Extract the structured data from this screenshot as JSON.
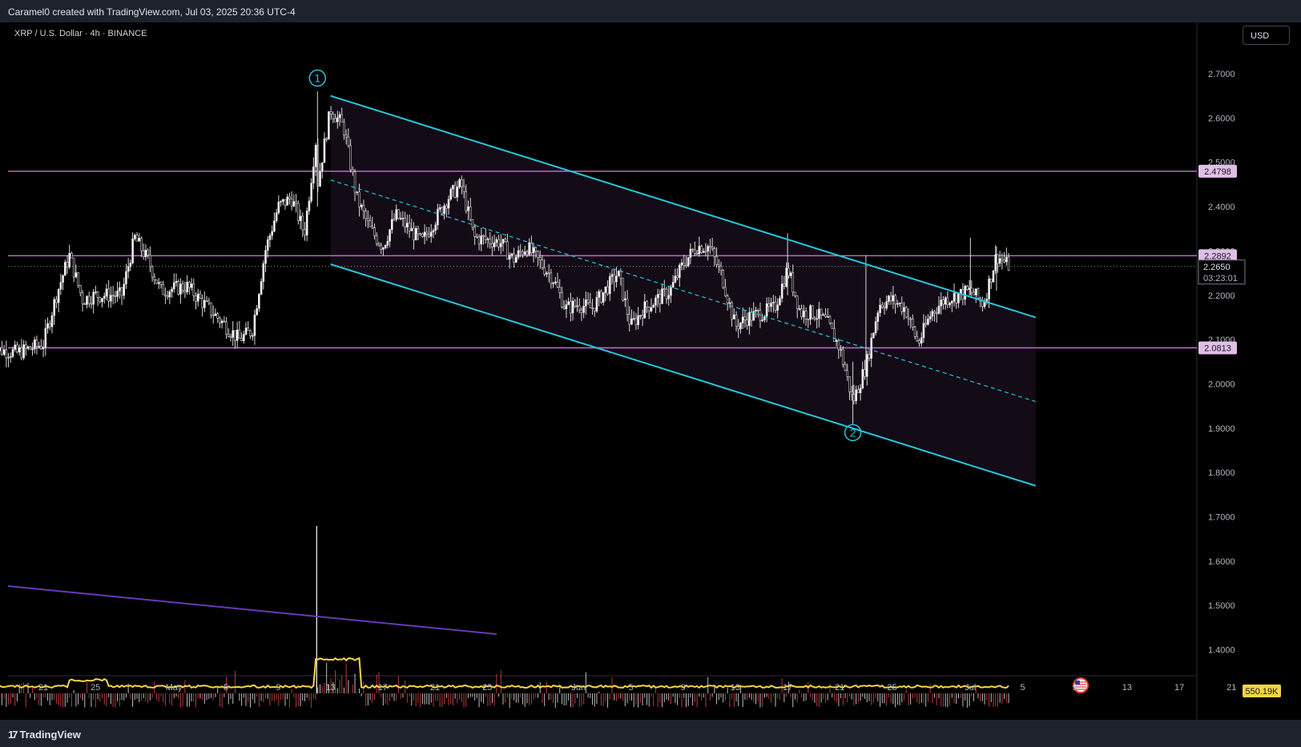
{
  "header": {
    "attribution": "Caramel0 created with TradingView.com, Jul 03, 2025 20:36 UTC-4"
  },
  "symbol_line": "XRP / U.S. Dollar · 4h · BINANCE",
  "currency_button": "USD",
  "footer": {
    "brand": "TradingView",
    "brand_icon": "tradingview-logo-icon"
  },
  "colors": {
    "channel": "#26c6da",
    "levels": "#ba68c8",
    "volume_ma": "#f5d547",
    "trend_line": "#673ab7",
    "price_label_bg": "#e1bee7"
  },
  "chart_data": {
    "type": "candlestick",
    "instrument": "XRP / U.S. Dollar",
    "timeframe": "4h",
    "exchange": "BINANCE",
    "y_axis": {
      "ticks": [
        2.7,
        2.6,
        2.5,
        2.4,
        2.3,
        2.2,
        2.1,
        2.0,
        1.9,
        1.8,
        1.7,
        1.6,
        1.5,
        1.4
      ],
      "tick_labels": [
        "2.7000",
        "2.6000",
        "2.5000",
        "2.4000",
        "2.3000",
        "2.2000",
        "2.1000",
        "2.0000",
        "1.9000",
        "1.8000",
        "1.7000",
        "1.6000",
        "1.5000",
        "1.4000"
      ],
      "range": [
        1.35,
        2.78
      ]
    },
    "x_axis": {
      "tick_labels": [
        {
          "label": "21",
          "date": "2025-04-21"
        },
        {
          "label": "25",
          "date": "2025-04-25"
        },
        {
          "label": "May",
          "date": "2025-05-01"
        },
        {
          "label": "5",
          "date": "2025-05-05"
        },
        {
          "label": "9",
          "date": "2025-05-09"
        },
        {
          "label": "13",
          "date": "2025-05-13"
        },
        {
          "label": "17",
          "date": "2025-05-17"
        },
        {
          "label": "21",
          "date": "2025-05-21"
        },
        {
          "label": "25",
          "date": "2025-05-25"
        },
        {
          "label": "Jun",
          "date": "2025-06-01"
        },
        {
          "label": "5",
          "date": "2025-06-05"
        },
        {
          "label": "9",
          "date": "2025-06-09"
        },
        {
          "label": "13",
          "date": "2025-06-13"
        },
        {
          "label": "17",
          "date": "2025-06-17"
        },
        {
          "label": "21",
          "date": "2025-06-21"
        },
        {
          "label": "25",
          "date": "2025-06-25"
        },
        {
          "label": "Jul",
          "date": "2025-07-01"
        },
        {
          "label": "5",
          "date": "2025-07-05"
        },
        {
          "label": "9",
          "date": "2025-07-09"
        },
        {
          "label": "13",
          "date": "2025-07-13"
        },
        {
          "label": "17",
          "date": "2025-07-17"
        },
        {
          "label": "21",
          "date": "2025-07-21"
        }
      ]
    },
    "price_path": [
      {
        "date": "2025-04-17",
        "price": 2.08
      },
      {
        "date": "2025-04-19",
        "price": 2.07
      },
      {
        "date": "2025-04-21",
        "price": 2.09
      },
      {
        "date": "2025-04-22",
        "price": 2.2
      },
      {
        "date": "2025-04-23",
        "price": 2.29
      },
      {
        "date": "2025-04-24",
        "price": 2.19
      },
      {
        "date": "2025-04-25",
        "price": 2.2
      },
      {
        "date": "2025-04-27",
        "price": 2.2
      },
      {
        "date": "2025-04-28",
        "price": 2.33
      },
      {
        "date": "2025-04-29",
        "price": 2.28
      },
      {
        "date": "2025-04-30",
        "price": 2.21
      },
      {
        "date": "2025-05-02",
        "price": 2.22
      },
      {
        "date": "2025-05-04",
        "price": 2.16
      },
      {
        "date": "2025-05-06",
        "price": 2.1
      },
      {
        "date": "2025-05-07",
        "price": 2.12
      },
      {
        "date": "2025-05-08",
        "price": 2.3
      },
      {
        "date": "2025-05-09",
        "price": 2.4
      },
      {
        "date": "2025-05-10",
        "price": 2.42
      },
      {
        "date": "2025-05-11",
        "price": 2.34
      },
      {
        "date": "2025-05-12",
        "price": 2.58
      },
      {
        "date": "2025-05-12",
        "price": 2.45
      },
      {
        "date": "2025-05-13",
        "price": 2.62
      },
      {
        "date": "2025-05-14",
        "price": 2.58
      },
      {
        "date": "2025-05-15",
        "price": 2.42
      },
      {
        "date": "2025-05-16",
        "price": 2.35
      },
      {
        "date": "2025-05-17",
        "price": 2.31
      },
      {
        "date": "2025-05-18",
        "price": 2.38
      },
      {
        "date": "2025-05-20",
        "price": 2.32
      },
      {
        "date": "2025-05-22",
        "price": 2.42
      },
      {
        "date": "2025-05-23",
        "price": 2.45
      },
      {
        "date": "2025-05-24",
        "price": 2.33
      },
      {
        "date": "2025-05-26",
        "price": 2.32
      },
      {
        "date": "2025-05-27",
        "price": 2.28
      },
      {
        "date": "2025-05-28",
        "price": 2.31
      },
      {
        "date": "2025-05-30",
        "price": 2.24
      },
      {
        "date": "2025-05-31",
        "price": 2.17
      },
      {
        "date": "2025-06-01",
        "price": 2.18
      },
      {
        "date": "2025-06-02",
        "price": 2.17
      },
      {
        "date": "2025-06-04",
        "price": 2.25
      },
      {
        "date": "2025-06-05",
        "price": 2.13
      },
      {
        "date": "2025-06-06",
        "price": 2.17
      },
      {
        "date": "2025-06-07",
        "price": 2.19
      },
      {
        "date": "2025-06-08",
        "price": 2.21
      },
      {
        "date": "2025-06-09",
        "price": 2.27
      },
      {
        "date": "2025-06-10",
        "price": 2.31
      },
      {
        "date": "2025-06-11",
        "price": 2.31
      },
      {
        "date": "2025-06-12",
        "price": 2.24
      },
      {
        "date": "2025-06-13",
        "price": 2.13
      },
      {
        "date": "2025-06-14",
        "price": 2.15
      },
      {
        "date": "2025-06-16",
        "price": 2.17
      },
      {
        "date": "2025-06-17",
        "price": 2.26
      },
      {
        "date": "2025-06-18",
        "price": 2.16
      },
      {
        "date": "2025-06-19",
        "price": 2.16
      },
      {
        "date": "2025-06-20",
        "price": 2.14
      },
      {
        "date": "2025-06-21",
        "price": 2.08
      },
      {
        "date": "2025-06-22",
        "price": 1.96
      },
      {
        "date": "2025-06-23",
        "price": 2.04
      },
      {
        "date": "2025-06-24",
        "price": 2.18
      },
      {
        "date": "2025-06-25",
        "price": 2.19
      },
      {
        "date": "2025-06-26",
        "price": 2.17
      },
      {
        "date": "2025-06-27",
        "price": 2.09
      },
      {
        "date": "2025-06-28",
        "price": 2.16
      },
      {
        "date": "2025-06-29",
        "price": 2.19
      },
      {
        "date": "2025-06-30",
        "price": 2.2
      },
      {
        "date": "2025-07-01",
        "price": 2.21
      },
      {
        "date": "2025-07-02",
        "price": 2.18
      },
      {
        "date": "2025-07-03",
        "price": 2.29
      },
      {
        "date": "2025-07-04",
        "price": 2.265
      }
    ],
    "horizontal_levels": [
      {
        "value": 2.4798,
        "label": "2.4798"
      },
      {
        "value": 2.2892,
        "label": "2.2892"
      },
      {
        "value": 2.0813,
        "label": "2.0813"
      }
    ],
    "last_price": {
      "label": "2.2650",
      "countdown": "03:23:01"
    },
    "channel": {
      "upper": [
        {
          "date": "2025-05-13",
          "price": 2.65
        },
        {
          "date": "2025-07-06",
          "price": 2.15
        }
      ],
      "middle": [
        {
          "date": "2025-05-13",
          "price": 2.46
        },
        {
          "date": "2025-07-06",
          "price": 1.96
        }
      ],
      "lower": [
        {
          "date": "2025-05-13",
          "price": 2.27
        },
        {
          "date": "2025-07-06",
          "price": 1.77
        }
      ]
    },
    "annotations": [
      {
        "label": "1",
        "date": "2025-05-12",
        "price": 2.69
      },
      {
        "label": "2",
        "date": "2025-06-22",
        "price": 1.89
      }
    ],
    "volume": {
      "last_label": "550.19K"
    }
  }
}
